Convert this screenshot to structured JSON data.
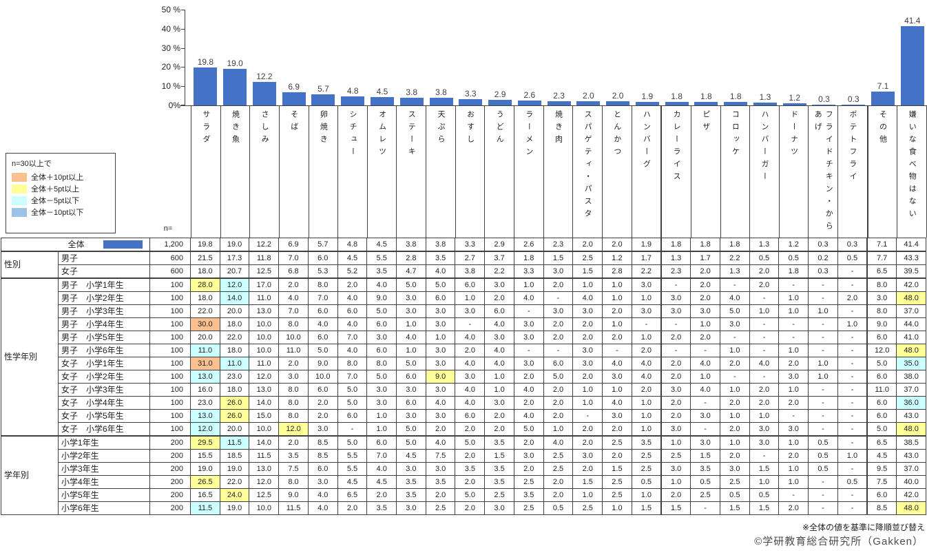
{
  "legend": {
    "title": "n=30以上で",
    "items": [
      {
        "label": "全体＋10pt以上",
        "color": "#FAC090"
      },
      {
        "label": "全体＋5pt以上",
        "color": "#FFFF99"
      },
      {
        "label": "全体－5pt以下",
        "color": "#CCFFFF"
      },
      {
        "label": "全体－10pt以下",
        "color": "#9DC3E6"
      }
    ]
  },
  "chart_data": {
    "type": "bar",
    "title": "",
    "xlabel": "",
    "ylabel": "%",
    "ylim": [
      0,
      50
    ],
    "grid": false,
    "legend_position": "none",
    "bar_color": "#4472C4",
    "ytick_labels": [
      "50 %",
      "40 %",
      "30 %",
      "20 %",
      "10 %",
      "0%"
    ],
    "categories": [
      "サラダ",
      "焼き魚",
      "さしみ",
      "そば",
      "卵焼き",
      "シチュー",
      "オムレツ",
      "ステーキ",
      "天ぷら",
      "おすし",
      "うどん",
      "ラーメン",
      "焼き肉",
      "スパゲティ・パスタ",
      "とんかつ",
      "ハンバーグ",
      "カレーライス",
      "ピザ",
      "コロッケ",
      "ハンバーガー",
      "ドーナツ",
      "フライドチキン・からあげ",
      "ポテトフライ",
      "その他",
      "嫌いな食べ物はない"
    ],
    "values": [
      19.8,
      19.0,
      12.2,
      6.9,
      5.7,
      4.8,
      4.5,
      3.8,
      3.8,
      3.3,
      2.9,
      2.6,
      2.3,
      2.0,
      2.0,
      1.9,
      1.8,
      1.8,
      1.8,
      1.3,
      1.2,
      0.3,
      0.3,
      7.1,
      41.4
    ],
    "value_labels": [
      "19.8",
      "19.0",
      "12.2",
      "6.9",
      "5.7",
      "4.8",
      "4.5",
      "3.8",
      "3.8",
      "3.3",
      "2.9",
      "2.6",
      "2.3",
      "2.0",
      "2.0",
      "1.9",
      "1.8",
      "1.8",
      "1.8",
      "1.3",
      "1.2",
      "0.3",
      "0.3",
      "7.1",
      "41.4"
    ]
  },
  "table": {
    "n_header": "n=",
    "thick_before": [
      16,
      23
    ],
    "highlight_colors": {
      "p10": "#FAC090",
      "p5": "#FFFF99",
      "m5": "#CCFFFF",
      "m10": "#9DC3E6"
    },
    "rows": [
      {
        "label": "全体",
        "full": true,
        "swatch": true,
        "n": "1,200",
        "values": [
          "19.8",
          "19.0",
          "12.2",
          "6.9",
          "5.7",
          "4.8",
          "4.5",
          "3.8",
          "3.8",
          "3.3",
          "2.9",
          "2.6",
          "2.3",
          "2.0",
          "2.0",
          "1.9",
          "1.8",
          "1.8",
          "1.8",
          "1.3",
          "1.2",
          "0.3",
          "0.3",
          "7.1",
          "41.4"
        ]
      },
      {
        "group": {
          "label": "性別",
          "span": 2
        },
        "group_start": true,
        "label": "男子",
        "n": "600",
        "values": [
          "21.5",
          "17.3",
          "11.8",
          "7.0",
          "6.0",
          "4.5",
          "5.5",
          "2.8",
          "3.5",
          "2.7",
          "3.7",
          "1.8",
          "1.5",
          "2.5",
          "1.2",
          "1.7",
          "1.3",
          "1.7",
          "2.2",
          "0.5",
          "0.5",
          "0.2",
          "0.5",
          "7.7",
          "43.3"
        ]
      },
      {
        "label": "女子",
        "n": "600",
        "values": [
          "18.0",
          "20.7",
          "12.5",
          "6.8",
          "5.3",
          "5.2",
          "3.5",
          "4.7",
          "4.0",
          "3.8",
          "2.2",
          "3.3",
          "3.0",
          "1.5",
          "2.8",
          "2.2",
          "2.3",
          "2.0",
          "1.3",
          "2.0",
          "1.8",
          "0.3",
          "-",
          "6.5",
          "39.5"
        ]
      },
      {
        "group": {
          "label": "性学年別",
          "span": 12
        },
        "group_start": true,
        "label": "男子　小学1年生",
        "n": "100",
        "values": [
          "28.0",
          "12.0",
          "17.0",
          "2.0",
          "8.0",
          "2.0",
          "4.0",
          "5.0",
          "5.0",
          "6.0",
          "3.0",
          "1.0",
          "2.0",
          "1.0",
          "1.0",
          "3.0",
          "-",
          "2.0",
          "-",
          "2.0",
          "-",
          "-",
          "-",
          "8.0",
          "42.0"
        ],
        "hl": {
          "0": "p5",
          "1": "m5"
        }
      },
      {
        "label": "男子　小学2年生",
        "n": "100",
        "values": [
          "18.0",
          "14.0",
          "11.0",
          "4.0",
          "7.0",
          "4.0",
          "9.0",
          "3.0",
          "6.0",
          "1.0",
          "2.0",
          "4.0",
          "-",
          "4.0",
          "1.0",
          "1.0",
          "3.0",
          "2.0",
          "4.0",
          "-",
          "1.0",
          "-",
          "2.0",
          "3.0",
          "48.0"
        ],
        "hl": {
          "1": "m5",
          "24": "p5"
        }
      },
      {
        "label": "男子　小学3年生",
        "n": "100",
        "values": [
          "22.0",
          "20.0",
          "13.0",
          "7.0",
          "6.0",
          "6.0",
          "5.0",
          "3.0",
          "3.0",
          "3.0",
          "6.0",
          "-",
          "3.0",
          "3.0",
          "2.0",
          "3.0",
          "3.0",
          "3.0",
          "5.0",
          "1.0",
          "1.0",
          "1.0",
          "-",
          "8.0",
          "37.0"
        ]
      },
      {
        "label": "男子　小学4年生",
        "n": "100",
        "values": [
          "30.0",
          "18.0",
          "10.0",
          "8.0",
          "4.0",
          "4.0",
          "6.0",
          "1.0",
          "3.0",
          "-",
          "4.0",
          "3.0",
          "2.0",
          "2.0",
          "1.0",
          "-",
          "-",
          "1.0",
          "3.0",
          "-",
          "-",
          "-",
          "1.0",
          "9.0",
          "44.0"
        ],
        "hl": {
          "0": "p10"
        }
      },
      {
        "label": "男子　小学5年生",
        "n": "100",
        "values": [
          "20.0",
          "22.0",
          "10.0",
          "10.0",
          "6.0",
          "7.0",
          "3.0",
          "4.0",
          "1.0",
          "4.0",
          "3.0",
          "3.0",
          "2.0",
          "2.0",
          "2.0",
          "1.0",
          "2.0",
          "2.0",
          "-",
          "-",
          "-",
          "-",
          "-",
          "6.0",
          "41.0"
        ]
      },
      {
        "label": "男子　小学6年生",
        "n": "100",
        "values": [
          "11.0",
          "18.0",
          "10.0",
          "11.0",
          "5.0",
          "4.0",
          "6.0",
          "1.0",
          "3.0",
          "2.0",
          "4.0",
          "-",
          "-",
          "3.0",
          "-",
          "2.0",
          "-",
          "-",
          "1.0",
          "-",
          "1.0",
          "-",
          "-",
          "12.0",
          "48.0"
        ],
        "hl": {
          "0": "m5",
          "24": "p5"
        }
      },
      {
        "label": "女子　小学1年生",
        "n": "100",
        "values": [
          "31.0",
          "11.0",
          "11.0",
          "2.0",
          "9.0",
          "8.0",
          "8.0",
          "5.0",
          "3.0",
          "4.0",
          "4.0",
          "3.0",
          "6.0",
          "3.0",
          "4.0",
          "4.0",
          "2.0",
          "4.0",
          "2.0",
          "4.0",
          "2.0",
          "1.0",
          "-",
          "5.0",
          "35.0"
        ],
        "hl": {
          "0": "p10",
          "1": "m5",
          "24": "m5"
        }
      },
      {
        "label": "女子　小学2年生",
        "n": "100",
        "values": [
          "13.0",
          "23.0",
          "12.0",
          "3.0",
          "10.0",
          "7.0",
          "5.0",
          "6.0",
          "9.0",
          "3.0",
          "1.0",
          "2.0",
          "5.0",
          "2.0",
          "3.0",
          "4.0",
          "2.0",
          "1.0",
          "-",
          "-",
          "3.0",
          "1.0",
          "-",
          "6.0",
          "38.0"
        ],
        "hl": {
          "0": "m5",
          "8": "p5"
        }
      },
      {
        "label": "女子　小学3年生",
        "n": "100",
        "values": [
          "16.0",
          "18.0",
          "13.0",
          "8.0",
          "6.0",
          "5.0",
          "3.0",
          "3.0",
          "3.0",
          "4.0",
          "1.0",
          "4.0",
          "2.0",
          "1.0",
          "1.0",
          "2.0",
          "3.0",
          "4.0",
          "1.0",
          "2.0",
          "1.0",
          "-",
          "-",
          "11.0",
          "37.0"
        ]
      },
      {
        "label": "女子　小学4年生",
        "n": "100",
        "values": [
          "23.0",
          "26.0",
          "14.0",
          "8.0",
          "2.0",
          "5.0",
          "3.0",
          "6.0",
          "4.0",
          "4.0",
          "3.0",
          "2.0",
          "2.0",
          "1.0",
          "4.0",
          "1.0",
          "2.0",
          "-",
          "2.0",
          "2.0",
          "2.0",
          "-",
          "-",
          "6.0",
          "36.0"
        ],
        "hl": {
          "1": "p5",
          "24": "m5"
        }
      },
      {
        "label": "女子　小学5年生",
        "n": "100",
        "values": [
          "13.0",
          "26.0",
          "15.0",
          "8.0",
          "2.0",
          "6.0",
          "1.0",
          "3.0",
          "3.0",
          "6.0",
          "2.0",
          "4.0",
          "2.0",
          "-",
          "3.0",
          "1.0",
          "2.0",
          "3.0",
          "1.0",
          "1.0",
          "-",
          "-",
          "-",
          "6.0",
          "43.0"
        ],
        "hl": {
          "0": "m5",
          "1": "p5"
        }
      },
      {
        "label": "女子　小学6年生",
        "n": "100",
        "values": [
          "12.0",
          "20.0",
          "10.0",
          "12.0",
          "3.0",
          "-",
          "1.0",
          "5.0",
          "2.0",
          "2.0",
          "2.0",
          "5.0",
          "1.0",
          "2.0",
          "2.0",
          "1.0",
          "3.0",
          "-",
          "2.0",
          "3.0",
          "3.0",
          "-",
          "-",
          "5.0",
          "48.0"
        ],
        "hl": {
          "0": "m5",
          "3": "p5",
          "24": "p5"
        }
      },
      {
        "group": {
          "label": "学年別",
          "span": 6
        },
        "group_start": true,
        "label": "小学1年生",
        "n": "200",
        "values": [
          "29.5",
          "11.5",
          "14.0",
          "2.0",
          "8.5",
          "5.0",
          "6.0",
          "5.0",
          "4.0",
          "5.0",
          "3.5",
          "2.0",
          "4.0",
          "2.0",
          "2.5",
          "3.5",
          "1.0",
          "3.0",
          "1.0",
          "3.0",
          "1.0",
          "0.5",
          "-",
          "6.5",
          "38.5"
        ],
        "hl": {
          "0": "p5",
          "1": "m5"
        }
      },
      {
        "label": "小学2年生",
        "n": "200",
        "values": [
          "15.5",
          "18.5",
          "11.5",
          "3.5",
          "8.5",
          "5.5",
          "7.0",
          "4.5",
          "7.5",
          "2.0",
          "1.5",
          "3.0",
          "2.5",
          "3.0",
          "2.0",
          "2.5",
          "2.5",
          "1.5",
          "2.0",
          "-",
          "2.0",
          "0.5",
          "1.0",
          "4.5",
          "43.0"
        ]
      },
      {
        "label": "小学3年生",
        "n": "200",
        "values": [
          "19.0",
          "19.0",
          "13.0",
          "7.5",
          "6.0",
          "5.5",
          "4.0",
          "3.0",
          "3.0",
          "3.5",
          "3.5",
          "2.0",
          "2.5",
          "2.0",
          "1.5",
          "2.5",
          "3.0",
          "3.5",
          "3.0",
          "1.5",
          "1.0",
          "0.5",
          "-",
          "9.5",
          "37.0"
        ]
      },
      {
        "label": "小学4年生",
        "n": "200",
        "values": [
          "26.5",
          "22.0",
          "12.0",
          "8.0",
          "3.0",
          "4.5",
          "4.5",
          "3.5",
          "3.5",
          "2.0",
          "3.5",
          "2.5",
          "2.0",
          "1.5",
          "2.5",
          "0.5",
          "1.0",
          "0.5",
          "2.5",
          "1.0",
          "1.0",
          "-",
          "0.5",
          "7.5",
          "40.0"
        ],
        "hl": {
          "0": "p5"
        }
      },
      {
        "label": "小学5年生",
        "n": "200",
        "values": [
          "16.5",
          "24.0",
          "12.5",
          "9.0",
          "4.0",
          "6.5",
          "2.0",
          "3.5",
          "2.0",
          "5.0",
          "2.5",
          "3.5",
          "2.0",
          "1.0",
          "2.5",
          "1.0",
          "2.0",
          "2.5",
          "0.5",
          "0.5",
          "-",
          "-",
          "-",
          "6.0",
          "42.0"
        ],
        "hl": {
          "1": "p5"
        }
      },
      {
        "label": "小学6年生",
        "n": "200",
        "values": [
          "11.5",
          "19.0",
          "10.0",
          "11.5",
          "4.0",
          "2.0",
          "3.5",
          "3.0",
          "2.5",
          "2.0",
          "3.0",
          "2.5",
          "0.5",
          "2.5",
          "1.0",
          "1.5",
          "1.5",
          "-",
          "1.5",
          "1.5",
          "2.0",
          "-",
          "-",
          "8.5",
          "48.0"
        ],
        "hl": {
          "0": "m5",
          "24": "p5"
        }
      }
    ]
  },
  "footer": {
    "note": "※全体の値を基準に降順並び替え",
    "credit": "©学研教育総合研究所（Gakken）"
  }
}
